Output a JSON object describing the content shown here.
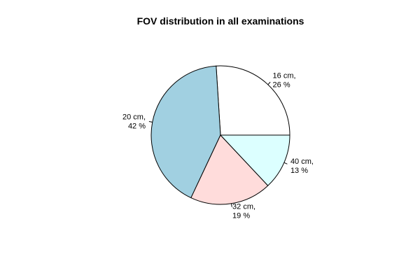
{
  "chart_data": {
    "type": "pie",
    "title": "FOV distribution in all examinations",
    "direction": "counterclockwise",
    "start_angle_deg": 0,
    "slices": [
      {
        "line1": "16 cm,",
        "line2": "26 %",
        "value": 26,
        "color": "#ffffff"
      },
      {
        "line1": "20 cm,",
        "line2": "42 %",
        "value": 42,
        "color": "#a1d0e1"
      },
      {
        "line1": "32 cm,",
        "line2": "19 %",
        "value": 19,
        "color": "#ffdcdb"
      },
      {
        "line1": "40 cm,",
        "line2": "13 %",
        "value": 13,
        "color": "#dcffff"
      }
    ],
    "legend": "none",
    "grid": false
  }
}
